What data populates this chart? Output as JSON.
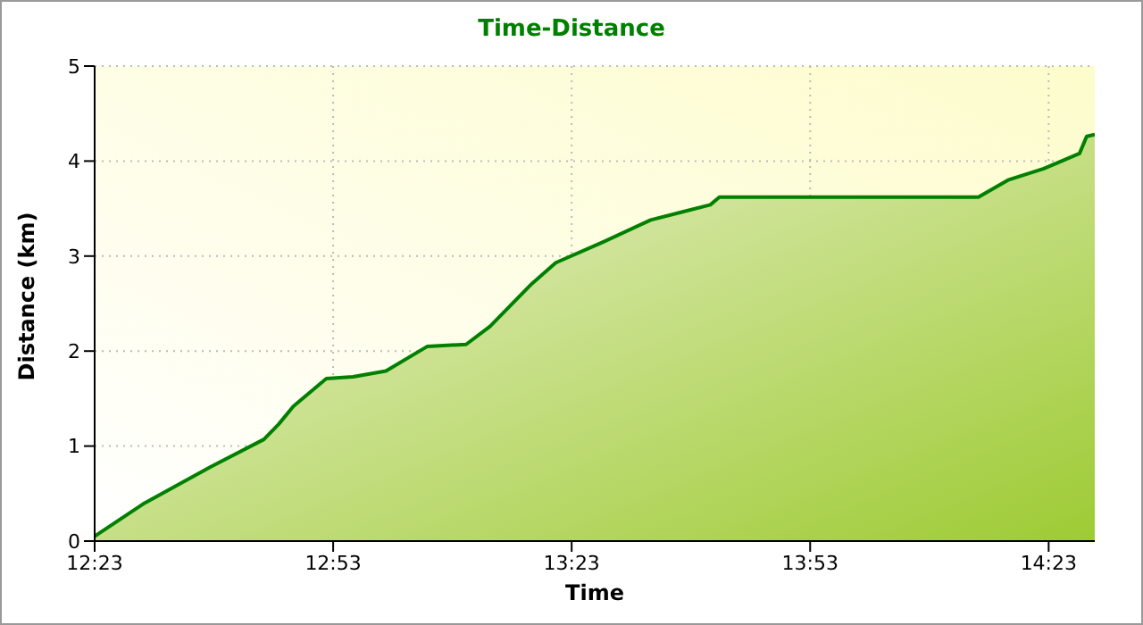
{
  "chart_data": {
    "type": "area",
    "title": "Time-Distance",
    "xlabel": "Time",
    "ylabel": "Distance (km)",
    "x": [
      12.3833,
      12.488,
      12.626,
      12.738,
      12.769,
      12.8,
      12.869,
      12.925,
      12.994,
      13.081,
      13.162,
      13.212,
      13.3,
      13.35,
      13.45,
      13.549,
      13.674,
      13.693,
      14.236,
      14.298,
      14.373,
      14.448,
      14.463,
      14.48
    ],
    "series": [
      {
        "color": "#008000",
        "values": [
          0.05,
          0.4,
          0.78,
          1.07,
          1.23,
          1.42,
          1.71,
          1.73,
          1.79,
          2.05,
          2.07,
          2.26,
          2.71,
          2.93,
          3.15,
          3.38,
          3.54,
          3.62,
          3.62,
          3.8,
          3.92,
          4.08,
          4.26,
          4.28
        ]
      }
    ],
    "xlim": [
      12.3833,
      14.48
    ],
    "xticks": [
      {
        "value": 12.3833,
        "label": "12:23"
      },
      {
        "value": 12.8833,
        "label": "12:53"
      },
      {
        "value": 13.3833,
        "label": "13:23"
      },
      {
        "value": 13.8833,
        "label": "13:53"
      },
      {
        "value": 14.3833,
        "label": "14:23"
      }
    ],
    "ylim": [
      0,
      5
    ],
    "yticks": [
      0,
      1,
      2,
      3,
      4,
      5
    ],
    "grid": true,
    "legend": false,
    "marker": "none",
    "line_style": "solid"
  }
}
